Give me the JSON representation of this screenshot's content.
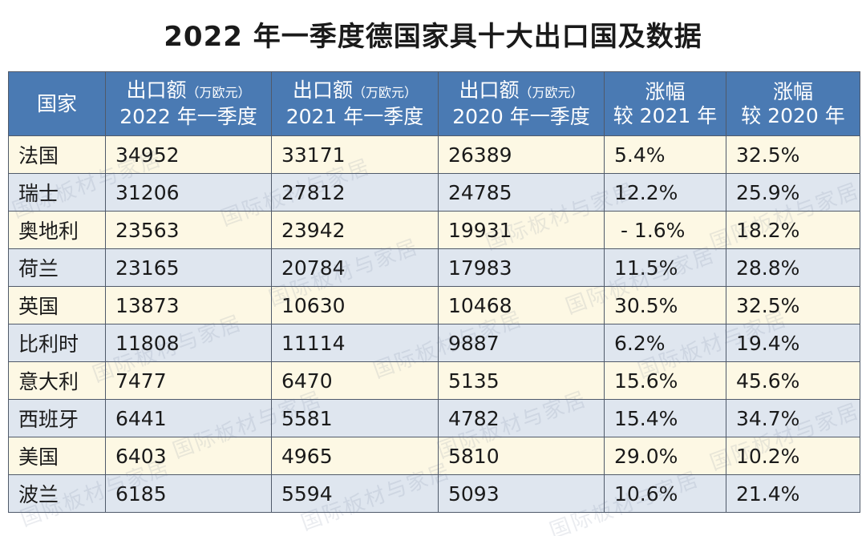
{
  "title": "2022 年一季度德国家具十大出口国及数据",
  "watermark": "国际板材与家居",
  "table": {
    "headers": [
      {
        "line1": "国家",
        "line1_small": "",
        "line2": ""
      },
      {
        "line1": "出口额",
        "line1_small": "（万欧元）",
        "line2": "2022 年一季度"
      },
      {
        "line1": "出口额",
        "line1_small": "（万欧元）",
        "line2": "2021 年一季度"
      },
      {
        "line1": "出口额",
        "line1_small": "（万欧元）",
        "line2": "2020 年一季度"
      },
      {
        "line1": "涨幅",
        "line1_small": "",
        "line2": "较 2021 年"
      },
      {
        "line1": "涨幅",
        "line1_small": "",
        "line2": "较 2020 年"
      }
    ],
    "rows": [
      [
        "法国",
        "34952",
        "33171",
        "26389",
        "5.4%",
        "32.5%"
      ],
      [
        "瑞士",
        "31206",
        "27812",
        "24785",
        "12.2%",
        "25.9%"
      ],
      [
        "奥地利",
        "23563",
        "23942",
        "19931",
        " - 1.6%",
        "18.2%"
      ],
      [
        "荷兰",
        "23165",
        "20784",
        "17983",
        "11.5%",
        "28.8%"
      ],
      [
        "英国",
        "13873",
        "10630",
        "10468",
        "30.5%",
        "32.5%"
      ],
      [
        "比利时",
        "11808",
        "11114",
        "9887",
        "6.2%",
        "19.4%"
      ],
      [
        "意大利",
        "7477",
        "6470",
        "5135",
        "15.6%",
        "45.6%"
      ],
      [
        "西班牙",
        "6441",
        "5581",
        "4782",
        "15.4%",
        "34.7%"
      ],
      [
        "美国",
        "6403",
        "4965",
        "5810",
        "29.0%",
        "10.2%"
      ],
      [
        "波兰",
        "6185",
        "5594",
        "5093",
        "10.6%",
        "21.4%"
      ]
    ]
  },
  "colors": {
    "header_bg": "#4a7ab3",
    "row_odd_bg": "#fdf8e4",
    "row_even_bg": "#dfe6ef",
    "border": "#505a6a"
  }
}
